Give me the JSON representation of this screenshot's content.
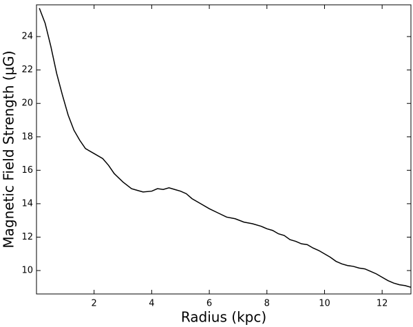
{
  "chart_data": {
    "type": "line",
    "xlabel": "Radius (kpc)",
    "ylabel": "Magnetic Field Strength (μG)",
    "x": [
      0.1,
      0.3,
      0.5,
      0.7,
      0.9,
      1.1,
      1.3,
      1.5,
      1.7,
      2.0,
      2.3,
      2.5,
      2.7,
      3.0,
      3.3,
      3.5,
      3.7,
      4.0,
      4.2,
      4.4,
      4.6,
      4.8,
      5.0,
      5.2,
      5.4,
      5.7,
      6.0,
      6.3,
      6.6,
      6.9,
      7.2,
      7.5,
      7.8,
      8.0,
      8.2,
      8.4,
      8.6,
      8.8,
      9.0,
      9.2,
      9.4,
      9.6,
      9.8,
      10.0,
      10.2,
      10.4,
      10.6,
      10.8,
      11.0,
      11.2,
      11.4,
      11.6,
      11.8,
      12.0,
      12.2,
      12.4,
      12.6,
      12.8,
      13.0
    ],
    "values": [
      25.7,
      24.8,
      23.4,
      21.8,
      20.5,
      19.3,
      18.4,
      17.8,
      17.3,
      17.0,
      16.7,
      16.3,
      15.8,
      15.3,
      14.9,
      14.8,
      14.7,
      14.75,
      14.9,
      14.85,
      14.95,
      14.85,
      14.75,
      14.6,
      14.3,
      14.0,
      13.7,
      13.45,
      13.2,
      13.1,
      12.9,
      12.8,
      12.65,
      12.5,
      12.4,
      12.2,
      12.1,
      11.85,
      11.75,
      11.6,
      11.55,
      11.35,
      11.2,
      11.0,
      10.8,
      10.55,
      10.4,
      10.3,
      10.25,
      10.15,
      10.1,
      9.95,
      9.8,
      9.6,
      9.4,
      9.25,
      9.15,
      9.1,
      9.0
    ],
    "color": "#000000",
    "xlim": [
      0,
      13
    ],
    "ylim": [
      8.6,
      25.9
    ],
    "xticks": [
      2,
      4,
      6,
      8,
      10,
      12
    ],
    "yticks": [
      10,
      12,
      14,
      16,
      18,
      20,
      22,
      24
    ]
  }
}
